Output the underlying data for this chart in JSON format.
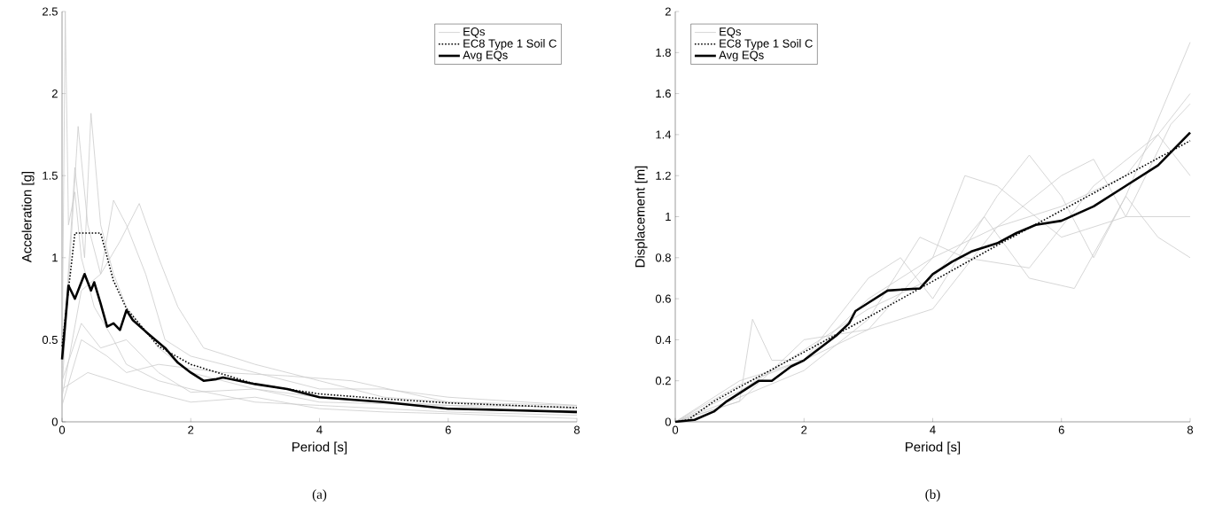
{
  "chart_data": [
    {
      "type": "line",
      "xlabel": "Period [s]",
      "ylabel": "Acceleration [g]",
      "xlim": [
        0,
        8
      ],
      "ylim": [
        0,
        2.5
      ],
      "xticks": [
        0,
        2,
        4,
        6,
        8
      ],
      "yticks": [
        0,
        0.5,
        1,
        1.5,
        2,
        2.5
      ],
      "legend": "top right",
      "annotations": [
        "(a)"
      ],
      "series": [
        {
          "name": "EQs",
          "color": "#cccccc",
          "x": [
            0,
            0.05,
            0.1,
            0.2,
            0.3,
            0.5,
            0.8,
            1,
            1.5,
            2,
            3,
            4,
            6,
            8
          ],
          "values": [
            0.3,
            2.5,
            1.2,
            1.4,
            1.0,
            0.7,
            0.5,
            0.35,
            0.25,
            0.2,
            0.12,
            0.1,
            0.06,
            0.04
          ]
        },
        {
          "color": "#cccccc",
          "x": [
            0,
            0.2,
            0.35,
            0.45,
            0.6,
            0.8,
            1,
            1.5,
            2,
            3,
            4,
            6,
            8
          ],
          "values": [
            0.3,
            1.55,
            1.0,
            1.88,
            1.2,
            0.9,
            0.7,
            0.45,
            0.3,
            0.2,
            0.15,
            0.1,
            0.09
          ]
        },
        {
          "color": "#cccccc",
          "x": [
            0,
            0.25,
            0.4,
            0.6,
            0.8,
            1.0,
            1.3,
            1.6,
            2,
            3,
            4,
            5,
            6,
            8
          ],
          "values": [
            0.2,
            1.8,
            1.2,
            0.9,
            1.35,
            1.2,
            0.9,
            0.5,
            0.4,
            0.3,
            0.2,
            0.2,
            0.15,
            0.1
          ]
        },
        {
          "color": "#cccccc",
          "x": [
            0,
            0.3,
            0.6,
            0.9,
            1.2,
            1.5,
            1.8,
            2.2,
            3,
            4,
            5,
            6,
            8
          ],
          "values": [
            0.15,
            0.8,
            0.9,
            1.1,
            1.33,
            1.0,
            0.7,
            0.45,
            0.35,
            0.25,
            0.15,
            0.12,
            0.08
          ]
        },
        {
          "color": "#cccccc",
          "x": [
            0,
            0.3,
            0.7,
            1.0,
            1.5,
            2.5,
            3.5,
            4.5,
            6,
            8
          ],
          "values": [
            0.1,
            0.5,
            0.4,
            0.3,
            0.35,
            0.3,
            0.28,
            0.25,
            0.12,
            0.1
          ]
        },
        {
          "color": "#cccccc",
          "x": [
            0,
            0.4,
            0.8,
            1.2,
            2,
            3,
            4,
            5,
            6,
            8
          ],
          "values": [
            0.2,
            0.3,
            0.25,
            0.2,
            0.12,
            0.15,
            0.08,
            0.06,
            0.05,
            0.02
          ]
        },
        {
          "color": "#cccccc",
          "x": [
            0,
            0.3,
            0.6,
            1,
            1.5,
            2,
            3,
            4,
            6,
            8
          ],
          "values": [
            0.25,
            0.6,
            0.45,
            0.5,
            0.3,
            0.18,
            0.2,
            0.12,
            0.1,
            0.05
          ]
        },
        {
          "name": "EC8 Type 1 Soil C",
          "color": "#000000",
          "line_style": "dotted",
          "x": [
            0,
            0.2,
            0.6,
            0.8,
            1,
            1.5,
            2,
            3,
            4,
            5,
            6,
            7,
            8
          ],
          "values": [
            0.46,
            1.15,
            1.15,
            0.86,
            0.69,
            0.46,
            0.35,
            0.23,
            0.17,
            0.14,
            0.115,
            0.1,
            0.086
          ]
        },
        {
          "name": "Avg EQs",
          "color": "#000000",
          "x": [
            0,
            0.1,
            0.2,
            0.3,
            0.35,
            0.45,
            0.5,
            0.6,
            0.7,
            0.8,
            0.9,
            1.0,
            1.1,
            1.3,
            1.6,
            1.8,
            2.0,
            2.2,
            2.4,
            2.5,
            3,
            3.5,
            4,
            5,
            6,
            7,
            8
          ],
          "values": [
            0.38,
            0.83,
            0.75,
            0.85,
            0.9,
            0.8,
            0.85,
            0.72,
            0.58,
            0.6,
            0.56,
            0.68,
            0.62,
            0.55,
            0.45,
            0.36,
            0.3,
            0.25,
            0.26,
            0.27,
            0.23,
            0.2,
            0.15,
            0.12,
            0.08,
            0.07,
            0.06
          ]
        }
      ]
    },
    {
      "type": "line",
      "xlabel": "Period [s]",
      "ylabel": "Displacement [m]",
      "xlim": [
        0,
        8
      ],
      "ylim": [
        0,
        2
      ],
      "xticks": [
        0,
        2,
        4,
        6,
        8
      ],
      "yticks": [
        0,
        0.2,
        0.4,
        0.6,
        0.8,
        1,
        1.2,
        1.4,
        1.6,
        1.8,
        2
      ],
      "legend": "top left",
      "annotations": [
        "(b)"
      ],
      "series": [
        {
          "name": "EQs",
          "color": "#cccccc",
          "x": [
            0,
            1,
            1.2,
            1.5,
            2,
            3,
            4,
            4.5,
            5,
            6,
            7,
            8
          ],
          "values": [
            0,
            0.1,
            0.5,
            0.3,
            0.3,
            0.45,
            0.8,
            1.2,
            1.15,
            0.9,
            1.0,
            1.0
          ]
        },
        {
          "color": "#cccccc",
          "x": [
            0,
            1,
            2,
            3,
            3.5,
            4,
            5,
            5.5,
            6,
            6.5,
            7,
            8
          ],
          "values": [
            0,
            0.2,
            0.3,
            0.7,
            0.8,
            0.6,
            1.1,
            1.3,
            1.1,
            0.8,
            1.1,
            1.85
          ]
        },
        {
          "color": "#cccccc",
          "x": [
            0,
            1,
            2,
            3,
            4,
            4.8,
            5.5,
            6.2,
            7,
            7.5,
            8
          ],
          "values": [
            0,
            0.15,
            0.35,
            0.55,
            0.7,
            1.0,
            0.7,
            0.65,
            1.1,
            0.9,
            0.8
          ]
        },
        {
          "color": "#cccccc",
          "x": [
            0,
            1,
            2,
            3,
            4,
            5,
            6,
            6.5,
            7,
            7.7,
            8
          ],
          "values": [
            0,
            0.18,
            0.3,
            0.6,
            0.8,
            0.95,
            1.2,
            1.28,
            1.0,
            1.45,
            1.55
          ]
        },
        {
          "color": "#cccccc",
          "x": [
            0,
            1,
            2,
            3,
            4,
            5,
            6,
            7,
            8
          ],
          "values": [
            0,
            0.1,
            0.4,
            0.45,
            0.55,
            0.95,
            1.05,
            1.2,
            1.6
          ]
        },
        {
          "color": "#cccccc",
          "x": [
            0,
            1,
            2,
            3,
            3.8,
            4.5,
            5.5,
            6.5,
            7.5,
            8
          ],
          "values": [
            0,
            0.12,
            0.25,
            0.5,
            0.9,
            0.8,
            0.75,
            1.15,
            1.4,
            1.2
          ]
        },
        {
          "name": "EC8 Type 1 Soil C",
          "color": "#000000",
          "line_style": "dotted",
          "x": [
            0,
            0.2,
            0.6,
            1,
            2,
            3,
            4,
            5,
            6,
            7,
            8
          ],
          "values": [
            0,
            0.01,
            0.1,
            0.17,
            0.34,
            0.51,
            0.685,
            0.86,
            1.03,
            1.2,
            1.37
          ]
        },
        {
          "name": "Avg EQs",
          "color": "#000000",
          "x": [
            0,
            0.3,
            0.6,
            0.8,
            1,
            1.3,
            1.5,
            1.8,
            2,
            2.5,
            2.7,
            2.8,
            3,
            3.3,
            3.8,
            4,
            4.3,
            4.6,
            5,
            5.3,
            5.6,
            6,
            6.5,
            7,
            7.5,
            8
          ],
          "values": [
            0,
            0.01,
            0.05,
            0.1,
            0.14,
            0.2,
            0.2,
            0.27,
            0.3,
            0.42,
            0.48,
            0.54,
            0.58,
            0.64,
            0.65,
            0.72,
            0.78,
            0.83,
            0.87,
            0.92,
            0.96,
            0.98,
            1.05,
            1.15,
            1.25,
            1.41
          ]
        }
      ]
    }
  ]
}
